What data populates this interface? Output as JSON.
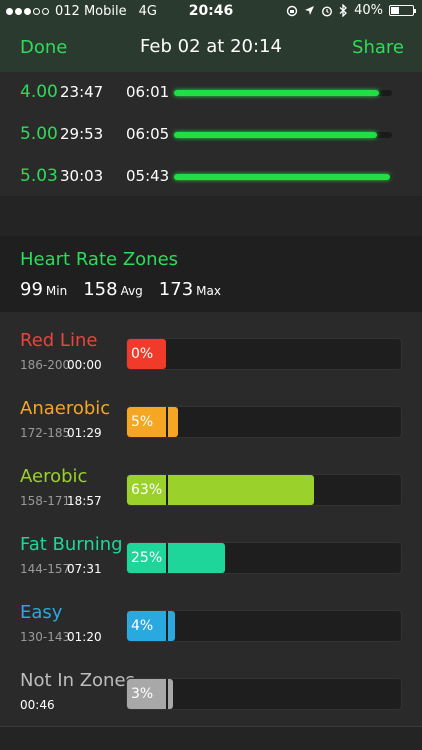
{
  "status_bar": {
    "carrier": "012 Mobile",
    "network": "4G",
    "time": "20:46",
    "battery": "40%",
    "battery_level": 0.4
  },
  "nav": {
    "done_label": "Done",
    "title": "Feb 02 at 20:14",
    "share_label": "Share"
  },
  "splits": [
    {
      "distance": "4.00",
      "time": "23:47",
      "pace": "06:01",
      "fraction": 0.94
    },
    {
      "distance": "5.00",
      "time": "29:53",
      "pace": "06:05",
      "fraction": 0.93
    },
    {
      "distance": "5.03",
      "time": "30:03",
      "pace": "05:43",
      "fraction": 0.99
    }
  ],
  "heart_rate": {
    "title": "Heart Rate Zones",
    "min_value": "99",
    "min_unit": "Min",
    "avg_value": "158",
    "avg_unit": "Avg",
    "max_value": "173",
    "max_unit": "Max"
  },
  "zones": [
    {
      "name": "Red Line",
      "range": "186-200",
      "duration": "00:00",
      "percent": "0%",
      "fraction": 0.0,
      "color": "#f03a2a",
      "name_color": "#e8463c"
    },
    {
      "name": "Anaerobic",
      "range": "172-185",
      "duration": "01:29",
      "percent": "5%",
      "fraction": 0.05,
      "color": "#f5a623",
      "name_color": "#f5a623"
    },
    {
      "name": "Aerobic",
      "range": "158-171",
      "duration": "18:57",
      "percent": "63%",
      "fraction": 0.63,
      "color": "#9ad12a",
      "name_color": "#9ad12a"
    },
    {
      "name": "Fat Burning",
      "range": "144-157",
      "duration": "07:31",
      "percent": "25%",
      "fraction": 0.25,
      "color": "#1fd69a",
      "name_color": "#1fd69a"
    },
    {
      "name": "Easy",
      "range": "130-143",
      "duration": "01:20",
      "percent": "4%",
      "fraction": 0.04,
      "color": "#2aa8e0",
      "name_color": "#2aa8e0"
    },
    {
      "name": "Not In Zones",
      "range": "",
      "duration": "00:46",
      "percent": "3%",
      "fraction": 0.03,
      "color": "#a8a8a8",
      "name_color": "#bdbdbd"
    }
  ]
}
